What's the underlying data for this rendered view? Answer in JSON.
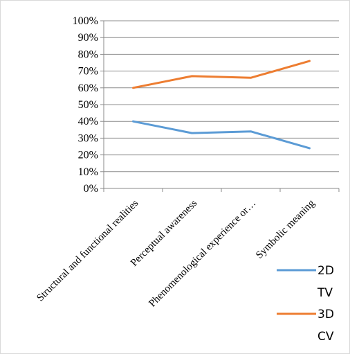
{
  "chart_data": {
    "type": "line",
    "categories": [
      "Structural and functional realities",
      "Perceptual awareness",
      "Phenomenological experience or…",
      "Symbolic meaning"
    ],
    "series": [
      {
        "name": "2D TV",
        "legend_lines": [
          "2D",
          "TV"
        ],
        "color": "#5b9bd5",
        "values": [
          40,
          33,
          34,
          24
        ]
      },
      {
        "name": "3D CV",
        "legend_lines": [
          "3D",
          "CV"
        ],
        "color": "#ed7d31",
        "values": [
          60,
          67,
          66,
          76
        ]
      }
    ],
    "y_ticks": [
      "0%",
      "10%",
      "20%",
      "30%",
      "40%",
      "50%",
      "60%",
      "70%",
      "80%",
      "90%",
      "100%"
    ],
    "ylim": [
      0,
      100
    ],
    "grid": true,
    "legend_position": "bottom-right"
  }
}
